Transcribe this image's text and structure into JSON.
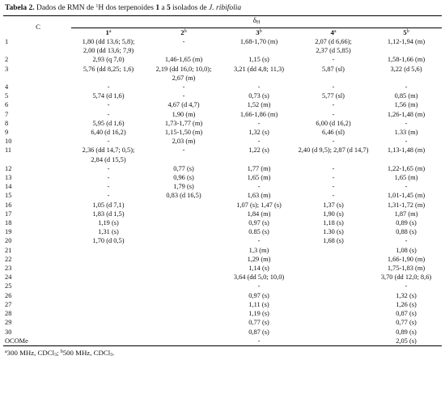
{
  "caption": {
    "label": "Tabela 2.",
    "pre": " Dados de RMN de ",
    "sup1": "1",
    "mid": "H dos terpenoides ",
    "n1": "1",
    "a": " a ",
    "n2": "5",
    "post": " isolados de ",
    "species": "J. ribifolia"
  },
  "header": {
    "c_label": "C",
    "delta": "δ",
    "delta_sub": "H",
    "columns": [
      {
        "num": "1",
        "sup": "a"
      },
      {
        "num": "2",
        "sup": "b"
      },
      {
        "num": "3",
        "sup": "b"
      },
      {
        "num": "4",
        "sup": "a"
      },
      {
        "num": "5",
        "sup": "b"
      }
    ]
  },
  "rows": [
    {
      "c": "1",
      "v": [
        [
          "1,80 (dd 13,6; 5,8);",
          "2,00 (dd 13,6; 7,9)"
        ],
        [
          "-"
        ],
        [
          "1,68-1,70 (m)"
        ],
        [
          "2,07 (d 6,66);",
          "2,37 (d 5,85)"
        ],
        [
          "1,12-1,94 (m)"
        ]
      ]
    },
    {
      "c": "2",
      "v": [
        [
          "2,93 (q 7,0)"
        ],
        [
          "1,46-1,65 (m)"
        ],
        [
          "1,15 (s)"
        ],
        [
          "-"
        ],
        [
          "1,58-1,66 (m)"
        ]
      ]
    },
    {
      "c": "3",
      "v": [
        [
          "5,76 (dd 8,25; 1,6)"
        ],
        [
          "2,19 (dd 16,0; 10,0);",
          "2,67 (m)"
        ],
        [
          "3,21 (dd 4,8; 11,3)"
        ],
        [
          "5,87 (sl)"
        ],
        [
          "3,22 (d 5,6)"
        ]
      ]
    },
    {
      "c": "4",
      "v": [
        [
          "-"
        ],
        [
          "-"
        ],
        [
          "-"
        ],
        [
          "-"
        ],
        [
          "-"
        ]
      ]
    },
    {
      "c": "5",
      "v": [
        [
          "5,74 (d 1,6)"
        ],
        [
          "-"
        ],
        [
          "0,73 (s)"
        ],
        [
          "5,77 (sl)"
        ],
        [
          "0,85 (m)"
        ]
      ]
    },
    {
      "c": "6",
      "v": [
        [
          "-"
        ],
        [
          "4,67 (d 4,7)"
        ],
        [
          "1,52 (m)"
        ],
        [
          "-"
        ],
        [
          "1,56 (m)"
        ]
      ]
    },
    {
      "c": "7",
      "v": [
        [
          "-"
        ],
        [
          "1,90 (m)"
        ],
        [
          "1,66-1,86 (m)"
        ],
        [
          "-"
        ],
        [
          "1,26-1,48 (m)"
        ]
      ]
    },
    {
      "c": "8",
      "v": [
        [
          "5,95 (d 1,6)"
        ],
        [
          "1,73-1,77 (m)"
        ],
        [
          "-"
        ],
        [
          "6,00 (d 16,2)"
        ],
        [
          "-"
        ]
      ]
    },
    {
      "c": "9",
      "v": [
        [
          "6,40 (d 16,2)"
        ],
        [
          "1,15-1,50 (m)"
        ],
        [
          "1,32 (s)"
        ],
        [
          "6,46 (sl)"
        ],
        [
          "1.33 (m)"
        ]
      ]
    },
    {
      "c": "10",
      "v": [
        [
          "-"
        ],
        [
          "2,03 (m)"
        ],
        [
          "-"
        ],
        [
          "-"
        ],
        [
          "-"
        ]
      ]
    },
    {
      "c": "11",
      "v": [
        [
          "2,36 (dd 14,7; 0,5);",
          "2,84 (d 15,5)"
        ],
        [
          "-"
        ],
        [
          "1,22 (s)"
        ],
        [
          "2,40 (d 9,5); 2,87 (d 14,7)"
        ],
        [
          "1,13-1,48 (m)"
        ]
      ]
    },
    {
      "c": "12",
      "v": [
        [
          "-"
        ],
        [
          "0,77 (s)"
        ],
        [
          "1,77 (m)"
        ],
        [
          "-"
        ],
        [
          "1,22-1,65 (m)"
        ]
      ]
    },
    {
      "c": "13",
      "v": [
        [
          "-"
        ],
        [
          "0,96 (s)"
        ],
        [
          "1,65 (m)"
        ],
        [
          "-"
        ],
        [
          "1,65 (m)"
        ]
      ]
    },
    {
      "c": "14",
      "v": [
        [
          "-"
        ],
        [
          "1,79 (s)"
        ],
        [
          "-"
        ],
        [
          "-"
        ],
        [
          "-"
        ]
      ]
    },
    {
      "c": "15",
      "v": [
        [
          "-"
        ],
        [
          "0,83 (d 16,5)"
        ],
        [
          "1,63 (m)"
        ],
        [
          "-"
        ],
        [
          "1,01-1,45 (m)"
        ]
      ]
    },
    {
      "c": "16",
      "v": [
        [
          "1,05 (d 7,1)"
        ],
        [
          ""
        ],
        [
          "1,07 (s); 1,47 (s)"
        ],
        [
          "1,37 (s)"
        ],
        [
          "1,31-1,72 (m)"
        ]
      ]
    },
    {
      "c": "17",
      "v": [
        [
          "1,83 (d 1,5)"
        ],
        [
          ""
        ],
        [
          "1,84 (m)"
        ],
        [
          "1,90 (s)"
        ],
        [
          "1,87 (m)"
        ]
      ]
    },
    {
      "c": "18",
      "v": [
        [
          "1,19 (s)"
        ],
        [
          ""
        ],
        [
          "0,97 (s)"
        ],
        [
          "1,18 (s)"
        ],
        [
          "0,89 (s)"
        ]
      ]
    },
    {
      "c": "19",
      "v": [
        [
          "1,31 (s)"
        ],
        [
          ""
        ],
        [
          "0.85 (s)"
        ],
        [
          "1.30 (s)"
        ],
        [
          "0,88 (s)"
        ]
      ]
    },
    {
      "c": "20",
      "v": [
        [
          "1,70 (d 0,5)"
        ],
        [
          ""
        ],
        [
          "-"
        ],
        [
          "1,68 (s)"
        ],
        [
          "-"
        ]
      ]
    },
    {
      "c": "21",
      "v": [
        [
          ""
        ],
        [
          ""
        ],
        [
          "1,3 (m)"
        ],
        [
          ""
        ],
        [
          "1,08 (s)"
        ]
      ]
    },
    {
      "c": "22",
      "v": [
        [
          ""
        ],
        [
          ""
        ],
        [
          "1,29 (m)"
        ],
        [
          ""
        ],
        [
          "1,66-1,90 (m)"
        ]
      ]
    },
    {
      "c": "23",
      "v": [
        [
          ""
        ],
        [
          ""
        ],
        [
          "1,14 (s)"
        ],
        [
          ""
        ],
        [
          "1,75-1,83 (m)"
        ]
      ]
    },
    {
      "c": "24",
      "v": [
        [
          ""
        ],
        [
          ""
        ],
        [
          "3,64 (dd 5,0; 10,0)"
        ],
        [
          ""
        ],
        [
          "3,70 (dd 12,0; 8,6)"
        ]
      ]
    },
    {
      "c": "25",
      "v": [
        [
          ""
        ],
        [
          ""
        ],
        [
          "-"
        ],
        [
          ""
        ],
        [
          "-"
        ]
      ]
    },
    {
      "c": "26",
      "v": [
        [
          ""
        ],
        [
          ""
        ],
        [
          "0,97 (s)"
        ],
        [
          ""
        ],
        [
          "1,32 (s)"
        ]
      ]
    },
    {
      "c": "27",
      "v": [
        [
          ""
        ],
        [
          ""
        ],
        [
          "1,11 (s)"
        ],
        [
          ""
        ],
        [
          "1,26 (s)"
        ]
      ]
    },
    {
      "c": "28",
      "v": [
        [
          ""
        ],
        [
          ""
        ],
        [
          "1,19 (s)"
        ],
        [
          ""
        ],
        [
          "0,87 (s)"
        ]
      ]
    },
    {
      "c": "29",
      "v": [
        [
          ""
        ],
        [
          ""
        ],
        [
          "0,77 (s)"
        ],
        [
          ""
        ],
        [
          "0,77 (s)"
        ]
      ]
    },
    {
      "c": "30",
      "v": [
        [
          ""
        ],
        [
          ""
        ],
        [
          "0,87 (s)"
        ],
        [
          ""
        ],
        [
          "0,89 (s)"
        ]
      ]
    },
    {
      "c": "OCOMe",
      "v": [
        [
          ""
        ],
        [
          ""
        ],
        [
          "-"
        ],
        [
          ""
        ],
        [
          "2,05 (s)"
        ]
      ]
    }
  ],
  "footnote": {
    "sa": "a",
    "t1": "300 MHz, CDCl",
    "s1": "3",
    "t2": "; ",
    "sb": "b",
    "t3": "500 MHz, CDCl",
    "s2": "3",
    "t4": "."
  }
}
